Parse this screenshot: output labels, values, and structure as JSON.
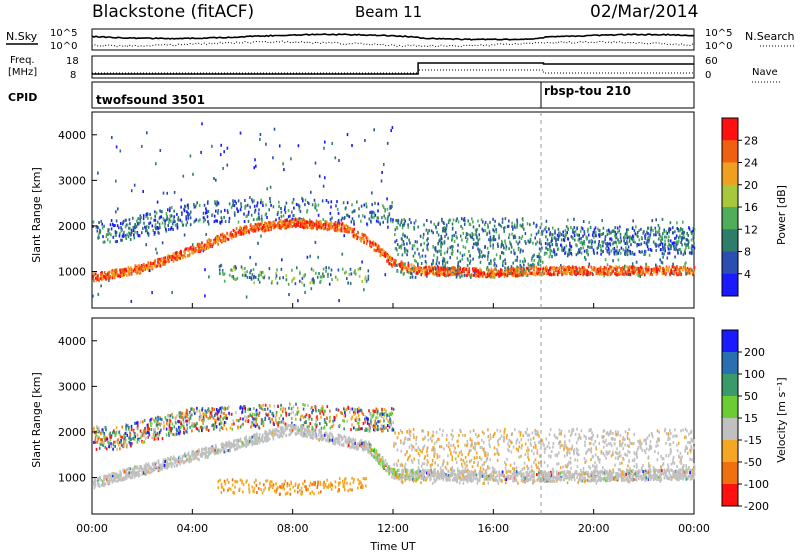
{
  "header": {
    "station": "Blackstone (fitACF)",
    "beam": "Beam 11",
    "date": "02/Mar/2014"
  },
  "status_panels": {
    "nsky_label": "N.Sky",
    "nsearch_label": "N.Search",
    "noise_left_ticks": [
      "10^5",
      "10^0"
    ],
    "noise_right_ticks": [
      "10^5",
      "10^0"
    ],
    "freq_label_1": "Freq.",
    "freq_label_2": "[MHz]",
    "freq_ticks": [
      "18",
      "8"
    ],
    "nave_label": "Nave",
    "nave_ticks": [
      "60",
      "0"
    ],
    "cpid_label": "CPID",
    "cpid_entries": [
      {
        "name": "twofsound 3501",
        "start_hour": 0
      },
      {
        "name": "rbsp-tou 210",
        "start_hour": 18
      }
    ]
  },
  "chart_data": [
    {
      "type": "heatmap",
      "name": "power",
      "ylabel": "Slant Range [km]",
      "yticks": [
        "1000",
        "2000",
        "3000",
        "4000"
      ],
      "ylim": [
        200,
        4500
      ],
      "xlim": [
        0,
        24
      ],
      "colorbar": {
        "label": "Power [dB]",
        "ticks": [
          "4",
          "8",
          "12",
          "16",
          "20",
          "24",
          "28"
        ],
        "colors": [
          "#1a1aff",
          "#2a4fb0",
          "#2e7d6a",
          "#4fae5a",
          "#a6c83a",
          "#f0a020",
          "#f06010",
          "#ff1010"
        ]
      },
      "echo_bands": [
        {
          "label": "main trace",
          "points": [
            [
              0,
              900
            ],
            [
              2,
              1100
            ],
            [
              4,
              1500
            ],
            [
              6,
              1950
            ],
            [
              8,
              2100
            ],
            [
              10,
              2000
            ],
            [
              11,
              1700
            ],
            [
              12,
              1200
            ],
            [
              13,
              1050
            ],
            [
              16,
              1000
            ],
            [
              18,
              1050
            ],
            [
              24,
              1050
            ]
          ],
          "level": "strong"
        },
        {
          "label": "lower patch",
          "points": [
            [
              5,
              1000
            ],
            [
              8,
              900
            ],
            [
              11,
              950
            ]
          ],
          "level": "medium"
        },
        {
          "label": "upper patch",
          "points": [
            [
              1,
              1900
            ],
            [
              4,
              2300
            ],
            [
              8,
              2400
            ],
            [
              11,
              2300
            ]
          ],
          "level": "weak"
        },
        {
          "label": "late upper",
          "points": [
            [
              18,
              1700
            ],
            [
              24,
              1700
            ]
          ],
          "level": "medium"
        }
      ]
    },
    {
      "type": "heatmap",
      "name": "velocity",
      "ylabel": "Slant Range [km]",
      "yticks": [
        "1000",
        "2000",
        "3000",
        "4000"
      ],
      "ylim": [
        200,
        4500
      ],
      "xlim": [
        0,
        24
      ],
      "xticks": [
        "00:00",
        "04:00",
        "08:00",
        "12:00",
        "16:00",
        "20:00",
        "00:00"
      ],
      "xlabel": "Time UT",
      "colorbar": {
        "label": "Velocity [m s⁻¹]",
        "ticks": [
          "200",
          "100",
          "50",
          "15",
          "-15",
          "-50",
          "-100",
          "-200"
        ],
        "colors": [
          "#1a1aff",
          "#2a6fb0",
          "#3a9a6a",
          "#6ccc33",
          "#c0c0c0",
          "#f5a623",
          "#f07010",
          "#ff1010"
        ]
      },
      "echo_bands": [
        {
          "label": "ground scatter",
          "points": [
            [
              0,
              900
            ],
            [
              4,
              1500
            ],
            [
              8,
              2100
            ],
            [
              11,
              1700
            ],
            [
              12,
              1100
            ],
            [
              18,
              1050
            ],
            [
              24,
              1100
            ]
          ],
          "level": "low-velocity"
        },
        {
          "label": "negative patch",
          "points": [
            [
              5,
              850
            ],
            [
              8,
              800
            ],
            [
              11,
              900
            ]
          ],
          "level": "-50"
        }
      ]
    }
  ]
}
